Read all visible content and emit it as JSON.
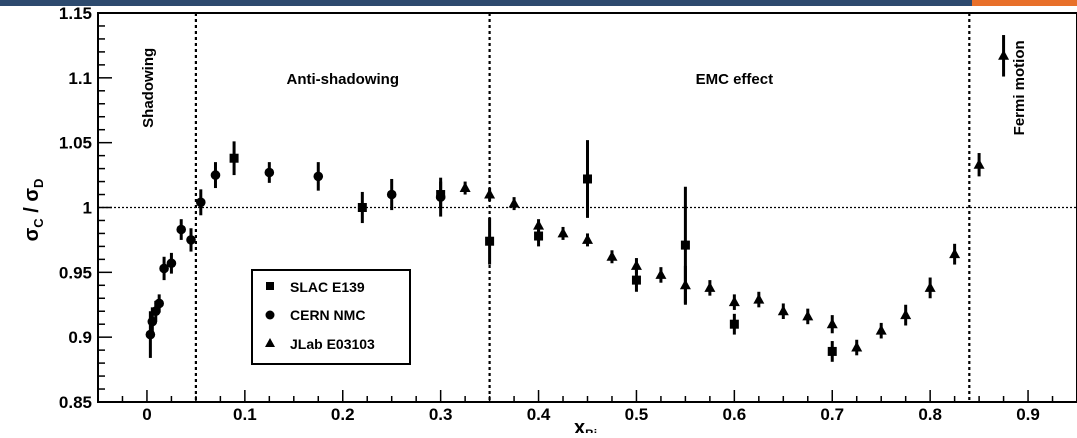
{
  "chart_data": {
    "type": "scatter",
    "xlabel": "x",
    "xlabel_sub": "Bj",
    "ylabel": "σ",
    "ylabel_sub1": "C",
    "ylabel_mid": " / σ",
    "ylabel_sub2": "D",
    "xlim": [
      -0.05,
      0.95
    ],
    "ylim": [
      0.85,
      1.15
    ],
    "xticks": [
      {
        "value": 0,
        "label": "0"
      },
      {
        "value": 0.1,
        "label": "0.1"
      },
      {
        "value": 0.2,
        "label": "0.2"
      },
      {
        "value": 0.3,
        "label": "0.3"
      },
      {
        "value": 0.4,
        "label": "0.4"
      },
      {
        "value": 0.5,
        "label": "0.5"
      },
      {
        "value": 0.6,
        "label": "0.6"
      },
      {
        "value": 0.7,
        "label": "0.7"
      },
      {
        "value": 0.8,
        "label": "0.8"
      },
      {
        "value": 0.9,
        "label": "0.9"
      }
    ],
    "yticks": [
      {
        "value": 0.85,
        "label": "0.85"
      },
      {
        "value": 0.9,
        "label": "0.9"
      },
      {
        "value": 0.95,
        "label": "0.95"
      },
      {
        "value": 1.0,
        "label": "1"
      },
      {
        "value": 1.05,
        "label": "1.05"
      },
      {
        "value": 1.1,
        "label": "1.1"
      },
      {
        "value": 1.15,
        "label": "1.15"
      }
    ],
    "reference_line": 1.0,
    "region_boundaries": [
      0.05,
      0.35,
      0.84
    ],
    "regions": [
      {
        "label": "Shadowing",
        "x": 0.0,
        "y": 1.1,
        "vertical": true
      },
      {
        "label": "Anti-shadowing",
        "x": 0.2,
        "y": 1.1,
        "vertical": false
      },
      {
        "label": "EMC effect",
        "x": 0.6,
        "y": 1.1,
        "vertical": false
      },
      {
        "label": "Fermi motion",
        "x": 0.9,
        "y": 1.1,
        "vertical": true
      }
    ],
    "series": [
      {
        "name": "SLAC E139",
        "marker": "square",
        "points": [
          {
            "x": 0.089,
            "y": 1.038,
            "err": 0.013
          },
          {
            "x": 0.22,
            "y": 1.0,
            "err": 0.012
          },
          {
            "x": 0.3,
            "y": 1.01,
            "err": 0.01
          },
          {
            "x": 0.35,
            "y": 0.974,
            "err": 0.018
          },
          {
            "x": 0.4,
            "y": 0.978,
            "err": 0.008
          },
          {
            "x": 0.45,
            "y": 1.022,
            "err": 0.03
          },
          {
            "x": 0.5,
            "y": 0.944,
            "err": 0.009
          },
          {
            "x": 0.55,
            "y": 0.971,
            "err": 0.045
          },
          {
            "x": 0.6,
            "y": 0.91,
            "err": 0.008
          },
          {
            "x": 0.7,
            "y": 0.889,
            "err": 0.008
          }
        ]
      },
      {
        "name": "CERN NMC",
        "marker": "circle",
        "points": [
          {
            "x": 0.0035,
            "y": 0.902,
            "err": 0.018
          },
          {
            "x": 0.0055,
            "y": 0.912,
            "err": 0.011
          },
          {
            "x": 0.009,
            "y": 0.92,
            "err": 0.008
          },
          {
            "x": 0.0125,
            "y": 0.926,
            "err": 0.007
          },
          {
            "x": 0.0175,
            "y": 0.953,
            "err": 0.009
          },
          {
            "x": 0.025,
            "y": 0.957,
            "err": 0.008
          },
          {
            "x": 0.035,
            "y": 0.983,
            "err": 0.008
          },
          {
            "x": 0.045,
            "y": 0.975,
            "err": 0.009
          },
          {
            "x": 0.055,
            "y": 1.004,
            "err": 0.01
          },
          {
            "x": 0.07,
            "y": 1.025,
            "err": 0.01
          },
          {
            "x": 0.125,
            "y": 1.027,
            "err": 0.008
          },
          {
            "x": 0.175,
            "y": 1.024,
            "err": 0.011
          },
          {
            "x": 0.25,
            "y": 1.01,
            "err": 0.012
          },
          {
            "x": 0.3,
            "y": 1.008,
            "err": 0.015
          }
        ]
      },
      {
        "name": "JLab E03103",
        "marker": "triangle",
        "points": [
          {
            "x": 0.325,
            "y": 1.015,
            "err": 0.005
          },
          {
            "x": 0.35,
            "y": 1.01,
            "err": 0.005
          },
          {
            "x": 0.375,
            "y": 1.003,
            "err": 0.005
          },
          {
            "x": 0.4,
            "y": 0.986,
            "err": 0.005
          },
          {
            "x": 0.425,
            "y": 0.98,
            "err": 0.005
          },
          {
            "x": 0.45,
            "y": 0.975,
            "err": 0.005
          },
          {
            "x": 0.475,
            "y": 0.962,
            "err": 0.005
          },
          {
            "x": 0.5,
            "y": 0.955,
            "err": 0.006
          },
          {
            "x": 0.525,
            "y": 0.948,
            "err": 0.006
          },
          {
            "x": 0.55,
            "y": 0.94,
            "err": 0.015
          },
          {
            "x": 0.575,
            "y": 0.938,
            "err": 0.006
          },
          {
            "x": 0.6,
            "y": 0.927,
            "err": 0.006
          },
          {
            "x": 0.625,
            "y": 0.929,
            "err": 0.006
          },
          {
            "x": 0.65,
            "y": 0.92,
            "err": 0.006
          },
          {
            "x": 0.675,
            "y": 0.916,
            "err": 0.006
          },
          {
            "x": 0.7,
            "y": 0.91,
            "err": 0.007
          },
          {
            "x": 0.725,
            "y": 0.892,
            "err": 0.006
          },
          {
            "x": 0.75,
            "y": 0.905,
            "err": 0.006
          },
          {
            "x": 0.775,
            "y": 0.917,
            "err": 0.008
          },
          {
            "x": 0.8,
            "y": 0.938,
            "err": 0.008
          },
          {
            "x": 0.825,
            "y": 0.964,
            "err": 0.008
          },
          {
            "x": 0.85,
            "y": 1.033,
            "err": 0.009
          },
          {
            "x": 0.875,
            "y": 1.117,
            "err": 0.016
          }
        ]
      }
    ],
    "legend": {
      "position": "bottom-left",
      "entries": [
        "SLAC E139",
        "CERN NMC",
        "JLab E03103"
      ]
    }
  },
  "colors": {
    "axis": "#000000",
    "banner_blue": "#2d4a6e",
    "banner_orange": "#e8702a"
  }
}
